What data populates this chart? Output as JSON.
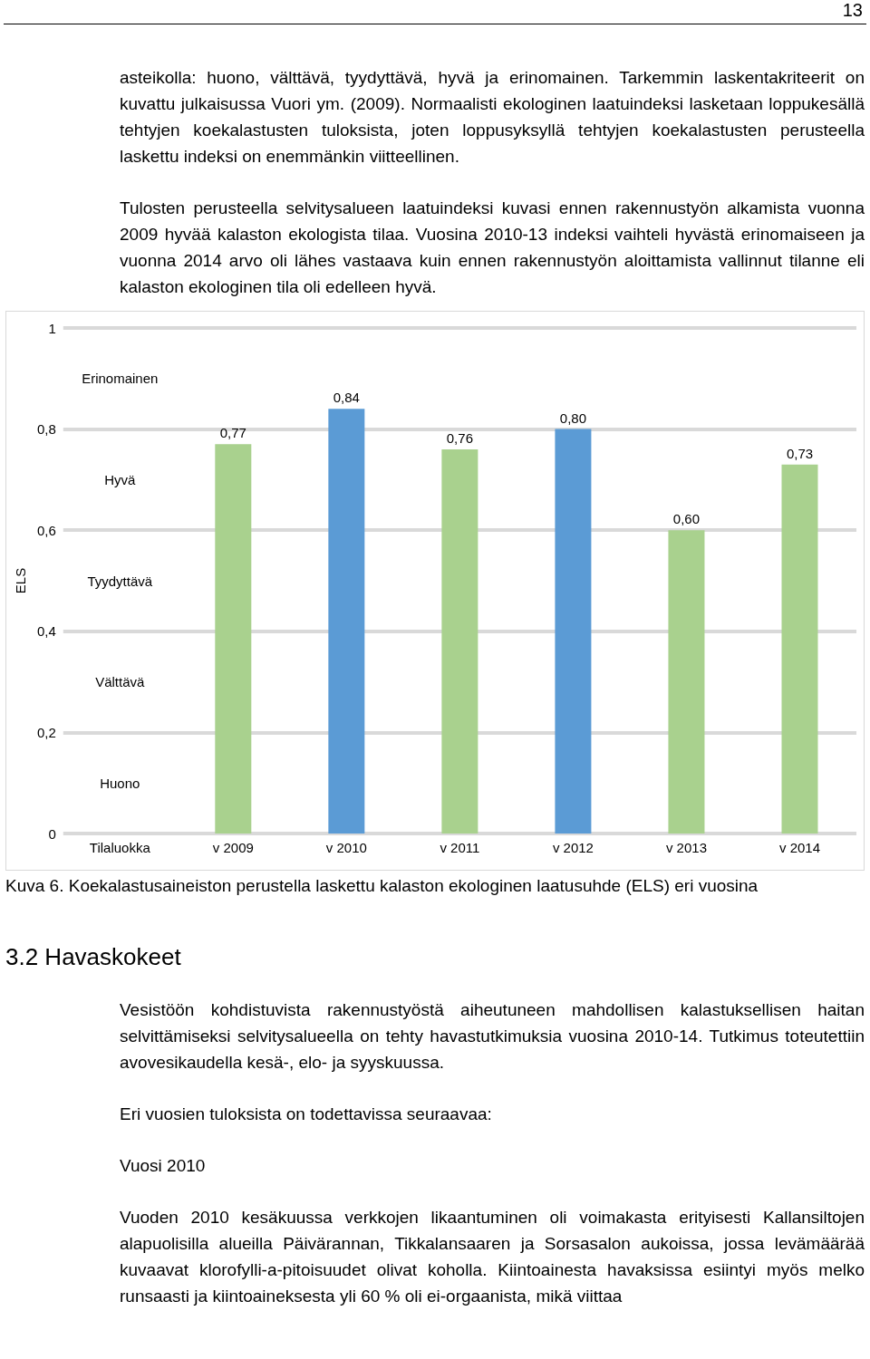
{
  "chart_data": {
    "type": "bar",
    "ylabel": "ELS",
    "categories": [
      "Tilaluokka",
      "v 2009",
      "v 2010",
      "v 2011",
      "v 2012",
      "v 2013",
      "v 2014"
    ],
    "values": [
      null,
      0.77,
      0.84,
      0.76,
      0.8,
      0.6,
      0.73
    ],
    "colors": [
      "#a9d18e",
      "#a9d18e",
      "#5b9bd5",
      "#a9d18e",
      "#5b9bd5",
      "#a9d18e",
      "#a9d18e"
    ],
    "value_labels": [
      null,
      "0,77",
      "0,84",
      "0,76",
      "0,80",
      "0,60",
      "0,73"
    ],
    "ylim": [
      0,
      1
    ],
    "yticks": [
      {
        "value": 0,
        "label": "0"
      },
      {
        "value": 0.2,
        "label": "0,2"
      },
      {
        "value": 0.4,
        "label": "0,4"
      },
      {
        "value": 0.6,
        "label": "0,6"
      },
      {
        "value": 0.8,
        "label": "0,8"
      },
      {
        "value": 1,
        "label": "1"
      }
    ],
    "grid": "y",
    "annotations": [
      "13",
      "asteikolla: huono, välttävä, tyydyttävä, hyvä ja erinomainen. Tarkemmin laskentakriteerit on kuvattu julkaisussa Vuori ym. (2009). Normaalisti ekologinen laatuindeksi lasketaan loppukesällä tehtyjen koekalastusten tuloksista, joten loppusyksyllä tehtyjen koekalastusten perusteella laskettu indeksi on enemmänkin viitteellinen.",
      "Tulosten perusteella selvitysalueen laatuindeksi kuvasi ennen rakennustyön alkamista vuonna 2009 hyvää kalaston ekologista tilaa. Vuosina 2010-13 indeksi vaihteli hyvästä erinomaiseen ja vuonna 2014 arvo oli lähes vastaava kuin ennen rakennustyön aloittamista vallinnut tilanne eli kalaston ekologinen tila oli edelleen hyvä.",
      "Erinomainen",
      "Hyvä",
      "Tyydyttävä",
      "Välttävä",
      "Huono",
      "Kuva 6. Koekalastusaineiston perustella laskettu kalaston ekologinen laatusuhde (ELS) eri vuosina",
      "3.2 Havaskokeet",
      "Vesistöön kohdistuvista rakennustyöstä aiheutuneen mahdollisen kalastuksellisen haitan selvittämiseksi selvitysalueella on tehty havastutkimuksia vuosina 2010-14. Tutkimus toteutettiin avovesikaudella kesä-, elo- ja syyskuussa.",
      "Eri vuosien tuloksista on todettavissa seuraavaa:",
      "Vuosi 2010",
      "Vuoden 2010 kesäkuussa verkkojen likaantuminen oli voimakasta erityisesti Kallansiltojen alapuolisilla alueilla Päivärannan, Tikkalansaaren ja Sorsasalon aukoissa, jossa levämäärää kuvaavat klorofylli-a-pitoisuudet olivat koholla. Kiintoainesta havaksissa esiintyi myös melko runsaasti ja kiintoaineksesta yli 60 % oli ei-orgaanista, mikä viittaa"
    ]
  }
}
